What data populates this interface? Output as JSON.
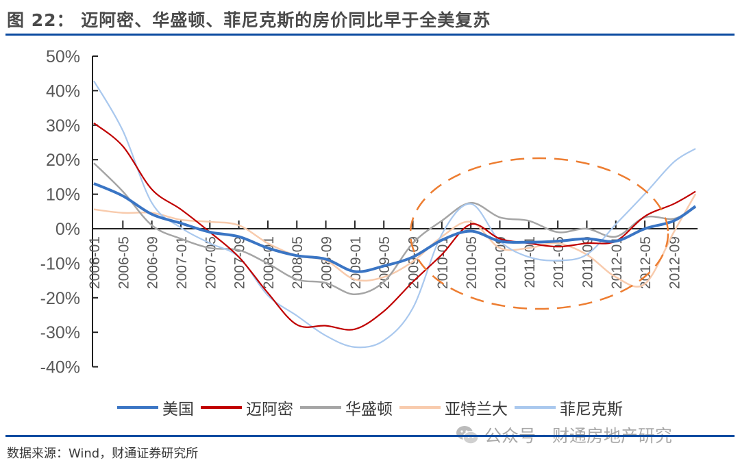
{
  "title": "图 22：  迈阿密、华盛顿、菲尼克斯的房价同比早于全美复苏",
  "source": "数据来源：Wind，财通证券研究所",
  "watermark": "公众号 · 财通房地产研究",
  "watermark_icon": "wechat-icon",
  "colors": {
    "rule": "#0b4aa0",
    "ellipse": "#ED7D31"
  },
  "chart_data": {
    "type": "line",
    "title": "",
    "xlabel": "",
    "ylabel": "",
    "ylim": [
      -40,
      50
    ],
    "yticks": [
      "50%",
      "40%",
      "30%",
      "20%",
      "10%",
      "0%",
      "-10%",
      "-20%",
      "-30%",
      "-40%"
    ],
    "xticks": [
      "2006-01",
      "2006-05",
      "2006-09",
      "2007-01",
      "2007-05",
      "2007-09",
      "2008-01",
      "2008-05",
      "2008-09",
      "2009-01",
      "2009-05",
      "2009-09",
      "2010-01",
      "2010-05",
      "2010-09",
      "2011-01",
      "2011-05",
      "2011-09",
      "2012-01",
      "2012-05",
      "2012-09"
    ],
    "x": [
      "2006-01",
      "2006-05",
      "2006-09",
      "2007-01",
      "2007-05",
      "2007-09",
      "2008-01",
      "2008-05",
      "2008-09",
      "2009-01",
      "2009-05",
      "2009-09",
      "2010-01",
      "2010-05",
      "2010-09",
      "2011-01",
      "2011-05",
      "2011-09",
      "2012-01",
      "2012-05",
      "2012-09",
      "2012-12"
    ],
    "legend_position": "bottom",
    "grid": false,
    "annotation": "dashed orange ellipse around 2009-09 to 2012-09",
    "series": [
      {
        "name": "美国",
        "color": "#3a75c4",
        "width": 4,
        "values": [
          13.1,
          9.5,
          4.2,
          1.6,
          -1,
          -2.3,
          -5.6,
          -7.8,
          -8.8,
          -12.4,
          -10.8,
          -8.2,
          -3.3,
          -0.7,
          -3.6,
          -3.9,
          -3.6,
          -2.9,
          -3.6,
          0,
          2.3,
          6.5
        ]
      },
      {
        "name": "迈阿密",
        "color": "#c00000",
        "width": 2.2,
        "values": [
          30.6,
          23.9,
          11.4,
          5.6,
          -1,
          -8.2,
          -18.6,
          -27.8,
          -28.1,
          -29.1,
          -23.9,
          -15.4,
          -7.5,
          1.3,
          -2.9,
          -4.2,
          -5.2,
          -4.2,
          -3.6,
          3.6,
          7.2,
          10.8
        ]
      },
      {
        "name": "华盛顿",
        "color": "#a5a5a5",
        "width": 2.5,
        "values": [
          19,
          10.8,
          1,
          -2.9,
          -5.6,
          -6.2,
          -10.1,
          -14.7,
          -15.7,
          -19,
          -15.4,
          -4.2,
          2.3,
          7.5,
          3.3,
          2.3,
          -1,
          0,
          -2.3,
          3.3,
          2.9,
          6.2
        ]
      },
      {
        "name": "亚特兰大",
        "color": "#f8cbad",
        "width": 2.5,
        "values": [
          5.6,
          4.6,
          4.6,
          2.6,
          2,
          1,
          -4.2,
          -7.8,
          -9.2,
          -14.7,
          -14,
          -9.5,
          -2.3,
          2,
          -5.6,
          -5.6,
          -4.2,
          -7.5,
          -14,
          -16,
          -1,
          10.1
        ]
      },
      {
        "name": "菲尼克斯",
        "color": "#a9c8ee",
        "width": 2.2,
        "values": [
          42.8,
          28.4,
          7.5,
          0.3,
          -4.2,
          -8.2,
          -19.3,
          -25.2,
          -31,
          -34.3,
          -32.4,
          -23,
          -1.6,
          7.2,
          -3.6,
          -8.2,
          -9.2,
          -7.5,
          1.3,
          10.1,
          19.3,
          23.2
        ]
      }
    ]
  }
}
